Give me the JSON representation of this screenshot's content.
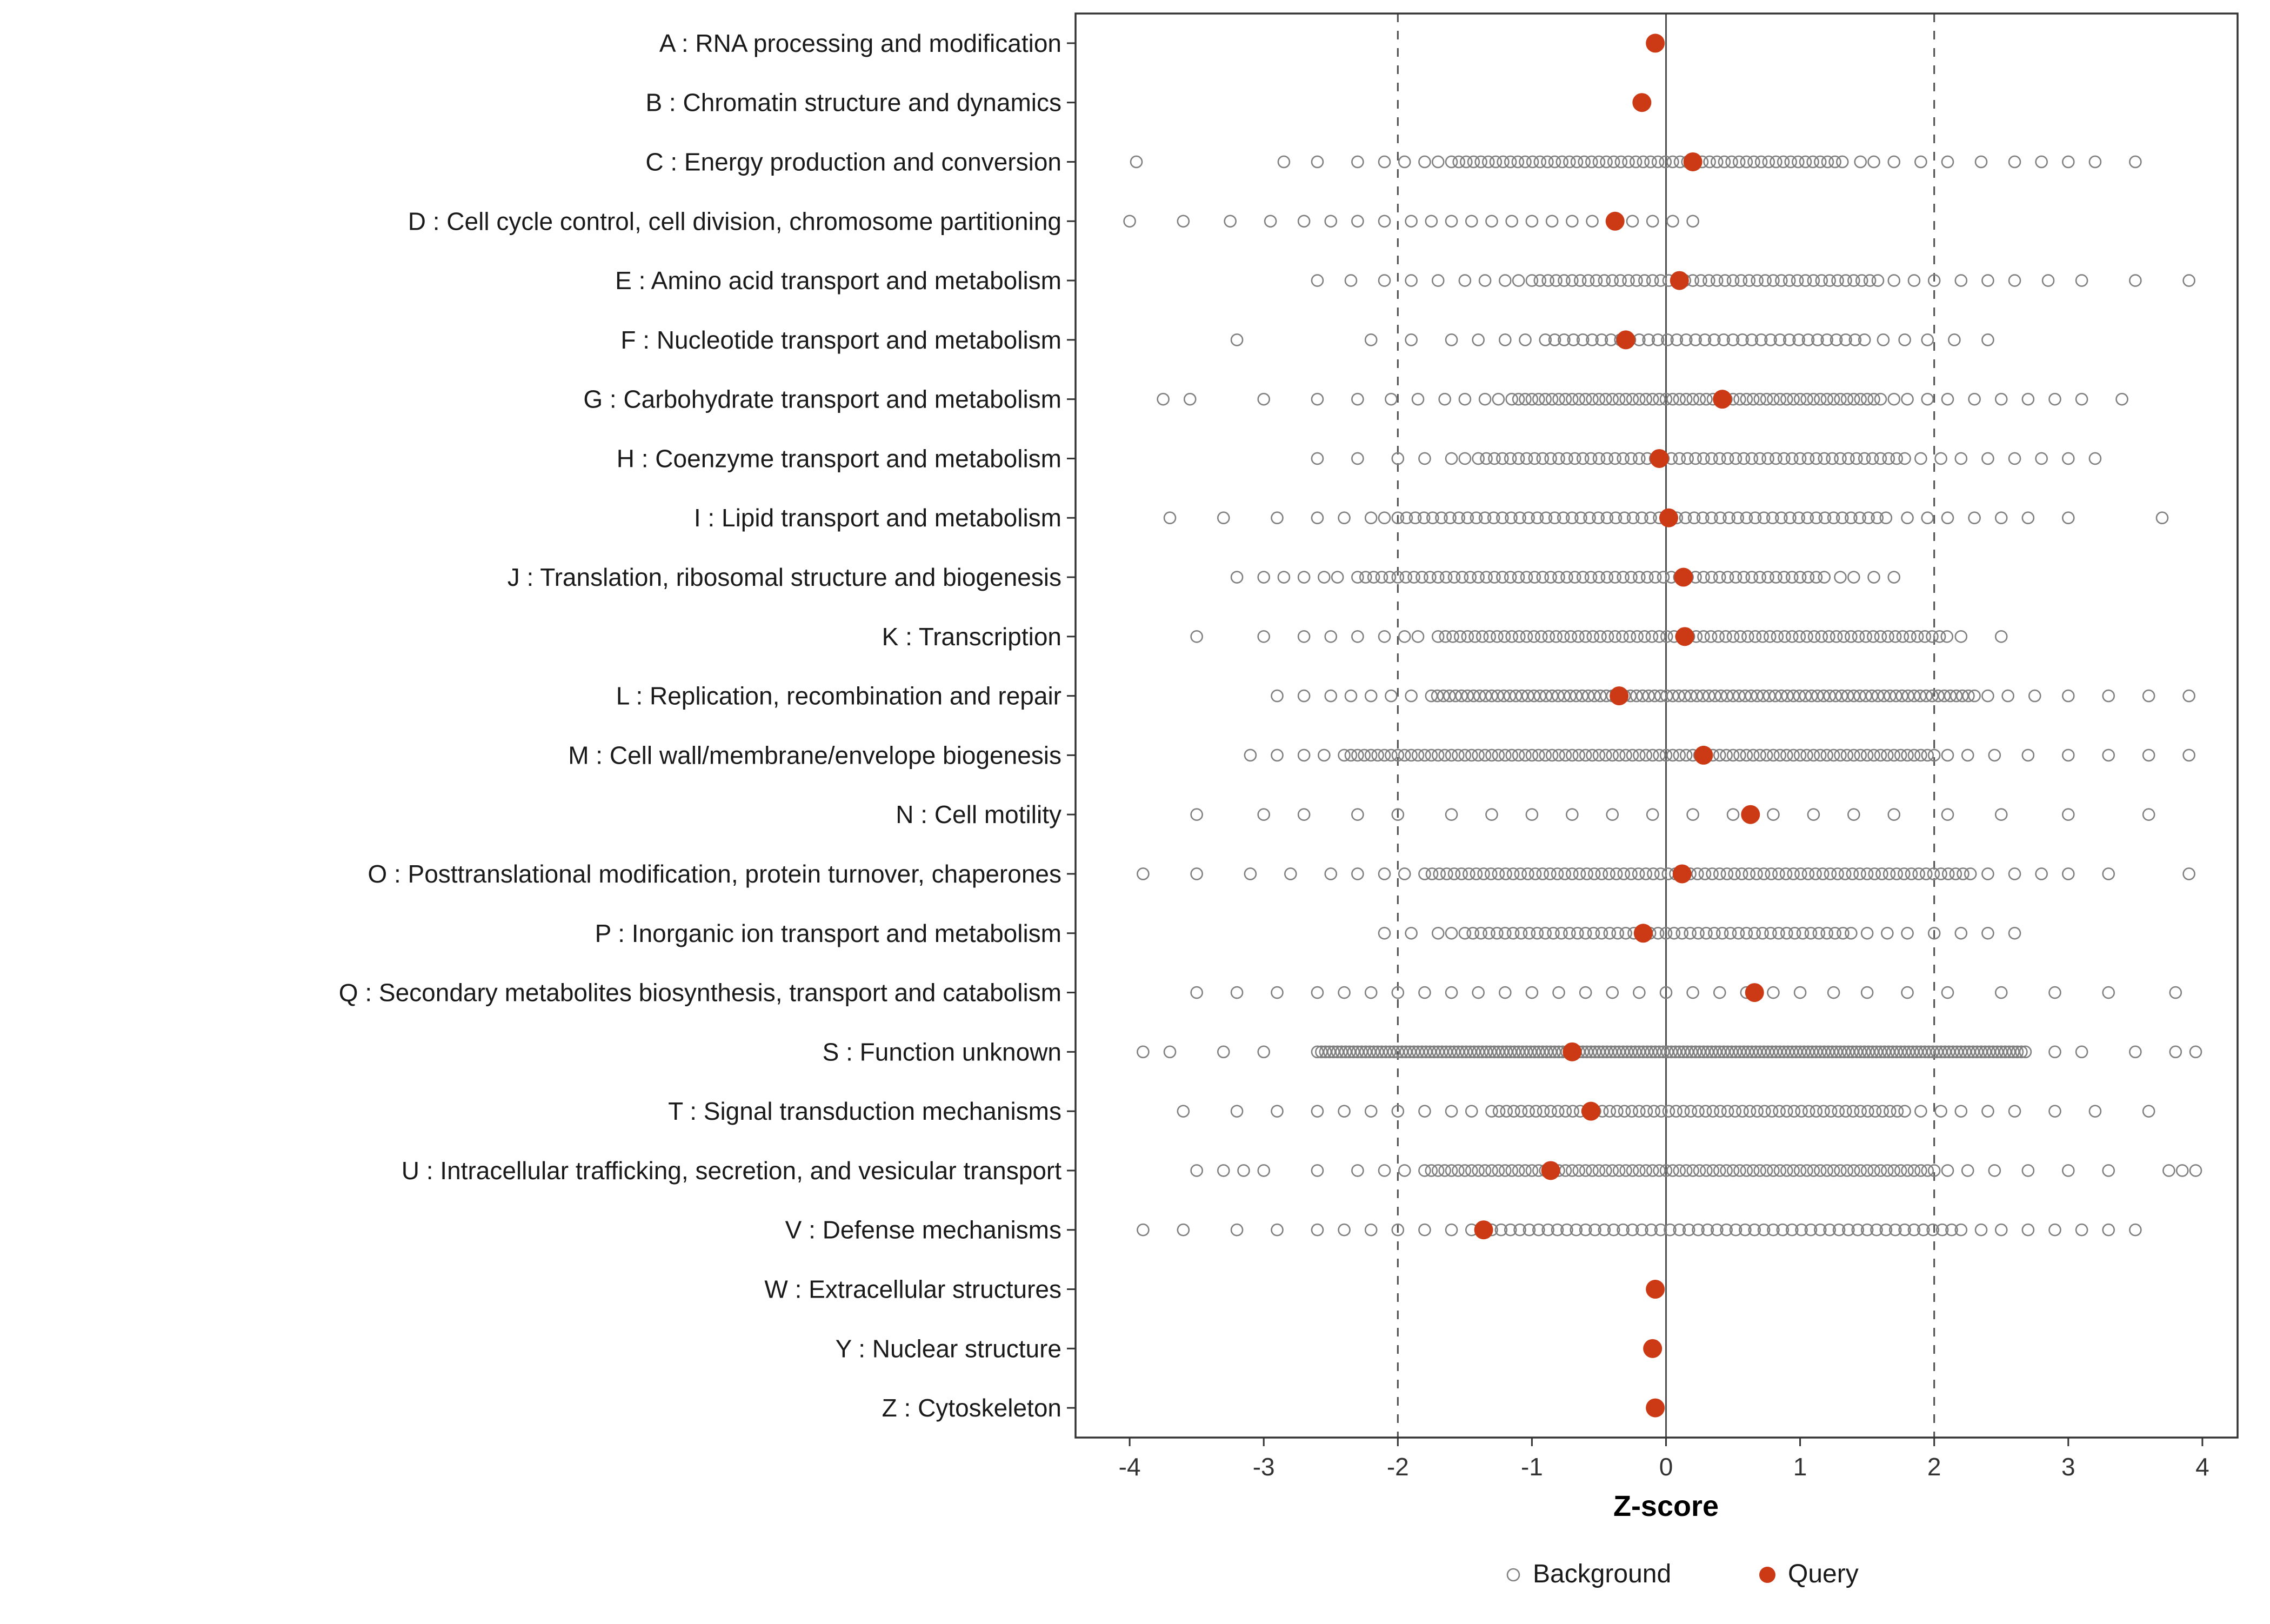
{
  "chart_data": {
    "type": "scatter",
    "title": "",
    "xlabel": "Z-score",
    "x_ticks": [
      -4,
      -3,
      -2,
      -1,
      0,
      1,
      2,
      3,
      4
    ],
    "xlim": [
      -4.4,
      4.26
    ],
    "grid": "off",
    "legend_position": "bottom",
    "reference_lines": {
      "solid": [
        0
      ],
      "dashed": [
        -2,
        2
      ]
    },
    "legend": [
      {
        "key": "background",
        "label": "Background"
      },
      {
        "key": "query",
        "label": "Query"
      }
    ],
    "colors": {
      "background_point": "#808080",
      "query_point": "#CC3915",
      "panel_border": "#333333",
      "ref_line": "#4D4D4D",
      "tick_label": "#333333",
      "category_label": "#1A1A1A",
      "axis_title": "#000000"
    },
    "categories": [
      {
        "label": "A : RNA processing and modification",
        "query": -0.08,
        "background": {
          "runs": [],
          "points": []
        }
      },
      {
        "label": "B : Chromatin structure and dynamics",
        "query": -0.18,
        "background": {
          "runs": [],
          "points": []
        }
      },
      {
        "label": "C : Energy production and conversion",
        "query": 0.2,
        "background": {
          "runs": [
            [
              -1.6,
              1.35,
              0.055
            ]
          ],
          "points": [
            -3.95,
            -2.85,
            -2.6,
            -2.3,
            -2.1,
            -1.95,
            -1.8,
            -1.7,
            1.45,
            1.55,
            1.7,
            1.9,
            2.1,
            2.35,
            2.6,
            2.8,
            3.0,
            3.2,
            3.5
          ]
        }
      },
      {
        "label": "D : Cell cycle control, cell division, chromosome partitioning",
        "query": -0.38,
        "background": {
          "runs": [],
          "points": [
            -4.0,
            -3.6,
            -3.25,
            -2.95,
            -2.7,
            -2.5,
            -2.3,
            -2.1,
            -1.9,
            -1.75,
            -1.6,
            -1.45,
            -1.3,
            -1.15,
            -1.0,
            -0.85,
            -0.7,
            -0.55,
            -0.4,
            -0.25,
            -0.1,
            0.05,
            0.2
          ]
        }
      },
      {
        "label": "E : Amino acid transport and metabolism",
        "query": 0.1,
        "background": {
          "runs": [
            [
              -1.0,
              1.6,
              0.06
            ]
          ],
          "points": [
            -2.6,
            -2.35,
            -2.1,
            -1.9,
            -1.7,
            -1.5,
            -1.35,
            -1.2,
            -1.1,
            1.7,
            1.85,
            2.0,
            2.2,
            2.4,
            2.6,
            2.85,
            3.1,
            3.5,
            3.9
          ]
        }
      },
      {
        "label": "F : Nucleotide transport and metabolism",
        "query": -0.3,
        "background": {
          "runs": [
            [
              -0.9,
              1.5,
              0.07
            ]
          ],
          "points": [
            -3.2,
            -2.2,
            -1.9,
            -1.6,
            -1.4,
            -1.2,
            -1.05,
            1.62,
            1.78,
            1.95,
            2.15,
            2.4
          ]
        }
      },
      {
        "label": "G : Carbohydrate transport and metabolism",
        "query": 0.42,
        "background": {
          "runs": [
            [
              -1.15,
              1.6,
              0.05
            ]
          ],
          "points": [
            -3.75,
            -3.55,
            -3.0,
            -2.6,
            -2.3,
            -2.05,
            -1.85,
            -1.65,
            -1.5,
            -1.35,
            -1.25,
            1.7,
            1.8,
            1.95,
            2.1,
            2.3,
            2.5,
            2.7,
            2.9,
            3.1,
            3.4
          ]
        }
      },
      {
        "label": "H : Coenzyme transport and metabolism",
        "query": -0.05,
        "background": {
          "runs": [
            [
              -1.4,
              1.8,
              0.06
            ]
          ],
          "points": [
            -2.6,
            -2.3,
            -2.0,
            -1.8,
            -1.6,
            -1.5,
            1.9,
            2.05,
            2.2,
            2.4,
            2.6,
            2.8,
            3.0,
            3.2
          ]
        }
      },
      {
        "label": "I : Lipid transport and metabolism",
        "query": 0.02,
        "background": {
          "runs": [
            [
              -2.0,
              1.7,
              0.065
            ]
          ],
          "points": [
            -3.7,
            -3.3,
            -2.9,
            -2.6,
            -2.4,
            -2.2,
            -2.1,
            1.8,
            1.95,
            2.1,
            2.3,
            2.5,
            2.7,
            3.0,
            3.7
          ]
        }
      },
      {
        "label": "J : Translation, ribosomal structure and biogenesis",
        "query": 0.13,
        "background": {
          "runs": [
            [
              -2.3,
              1.2,
              0.06
            ]
          ],
          "points": [
            -3.2,
            -3.0,
            -2.85,
            -2.7,
            -2.55,
            -2.45,
            1.3,
            1.4,
            1.55,
            1.7
          ]
        }
      },
      {
        "label": "K : Transcription",
        "query": 0.14,
        "background": {
          "runs": [
            [
              -1.7,
              2.1,
              0.055
            ]
          ],
          "points": [
            -3.5,
            -3.0,
            -2.7,
            -2.5,
            -2.3,
            -2.1,
            -1.95,
            -1.85,
            2.2,
            2.5
          ]
        }
      },
      {
        "label": "L : Replication, recombination and repair",
        "query": -0.35,
        "background": {
          "runs": [
            [
              -1.75,
              2.3,
              0.045
            ]
          ],
          "points": [
            -2.9,
            -2.7,
            -2.5,
            -2.35,
            -2.2,
            -2.05,
            -1.9,
            2.4,
            2.55,
            2.75,
            3.0,
            3.3,
            3.6,
            3.9
          ]
        }
      },
      {
        "label": "M : Cell wall/membrane/envelope biogenesis",
        "query": 0.28,
        "background": {
          "runs": [
            [
              -2.4,
              2.0,
              0.05
            ]
          ],
          "points": [
            -3.1,
            -2.9,
            -2.7,
            -2.55,
            2.1,
            2.25,
            2.45,
            2.7,
            3.0,
            3.3,
            3.6,
            3.9
          ]
        }
      },
      {
        "label": "N : Cell motility",
        "query": 0.63,
        "background": {
          "runs": [],
          "points": [
            -3.5,
            -3.0,
            -2.7,
            -2.3,
            -2.0,
            -1.6,
            -1.3,
            -1.0,
            -0.7,
            -0.4,
            -0.1,
            0.2,
            0.5,
            0.8,
            1.1,
            1.4,
            1.7,
            2.1,
            2.5,
            3.0,
            3.6
          ]
        }
      },
      {
        "label": "O : Posttranslational modification, protein turnover, chaperones",
        "query": 0.12,
        "background": {
          "runs": [
            [
              -1.8,
              2.3,
              0.055
            ]
          ],
          "points": [
            -3.9,
            -3.5,
            -3.1,
            -2.8,
            -2.5,
            -2.3,
            -2.1,
            -1.95,
            2.4,
            2.6,
            2.8,
            3.0,
            3.3,
            3.9
          ]
        }
      },
      {
        "label": "P : Inorganic ion transport and metabolism",
        "query": -0.17,
        "background": {
          "runs": [
            [
              -1.5,
              1.4,
              0.06
            ]
          ],
          "points": [
            -2.1,
            -1.9,
            -1.7,
            -1.6,
            1.5,
            1.65,
            1.8,
            2.0,
            2.2,
            2.4,
            2.6
          ]
        }
      },
      {
        "label": "Q : Secondary metabolites biosynthesis, transport and catabolism",
        "query": 0.66,
        "background": {
          "runs": [],
          "points": [
            -3.5,
            -3.2,
            -2.9,
            -2.6,
            -2.4,
            -2.2,
            -2.0,
            -1.8,
            -1.6,
            -1.4,
            -1.2,
            -1.0,
            -0.8,
            -0.6,
            -0.4,
            -0.2,
            0.0,
            0.2,
            0.4,
            0.6,
            0.8,
            1.0,
            1.25,
            1.5,
            1.8,
            2.1,
            2.5,
            2.9,
            3.3,
            3.8
          ]
        }
      },
      {
        "label": "S : Function unknown",
        "query": -0.7,
        "background": {
          "runs": [
            [
              -2.6,
              2.7,
              0.03
            ]
          ],
          "points": [
            -3.9,
            -3.7,
            -3.3,
            -3.0,
            2.9,
            3.1,
            3.5,
            3.8,
            3.95
          ]
        }
      },
      {
        "label": "T : Signal transduction mechanisms",
        "query": -0.56,
        "background": {
          "runs": [
            [
              -1.3,
              1.8,
              0.055
            ]
          ],
          "points": [
            -3.6,
            -3.2,
            -2.9,
            -2.6,
            -2.4,
            -2.2,
            -2.0,
            -1.8,
            -1.6,
            -1.45,
            1.9,
            2.05,
            2.2,
            2.4,
            2.6,
            2.9,
            3.2,
            3.6
          ]
        }
      },
      {
        "label": "U : Intracellular trafficking, secretion, and vesicular transport",
        "query": -0.86,
        "background": {
          "runs": [
            [
              -1.8,
              2.0,
              0.05
            ]
          ],
          "points": [
            -3.5,
            -3.3,
            -3.15,
            -3.0,
            -2.6,
            -2.3,
            -2.1,
            -1.95,
            2.1,
            2.25,
            2.45,
            2.7,
            3.0,
            3.3,
            3.75,
            3.85,
            3.95
          ]
        }
      },
      {
        "label": "V : Defense mechanisms",
        "query": -1.36,
        "background": {
          "runs": [
            [
              -1.3,
              2.2,
              0.07
            ]
          ],
          "points": [
            -3.9,
            -3.6,
            -3.2,
            -2.9,
            -2.6,
            -2.4,
            -2.2,
            -2.0,
            -1.8,
            -1.6,
            -1.45,
            2.35,
            2.5,
            2.7,
            2.9,
            3.1,
            3.3,
            3.5
          ]
        }
      },
      {
        "label": "W : Extracellular structures",
        "query": -0.08,
        "background": {
          "runs": [],
          "points": []
        }
      },
      {
        "label": "Y : Nuclear structure",
        "query": -0.1,
        "background": {
          "runs": [],
          "points": []
        }
      },
      {
        "label": "Z : Cytoskeleton",
        "query": -0.08,
        "background": {
          "runs": [],
          "points": []
        }
      }
    ]
  }
}
